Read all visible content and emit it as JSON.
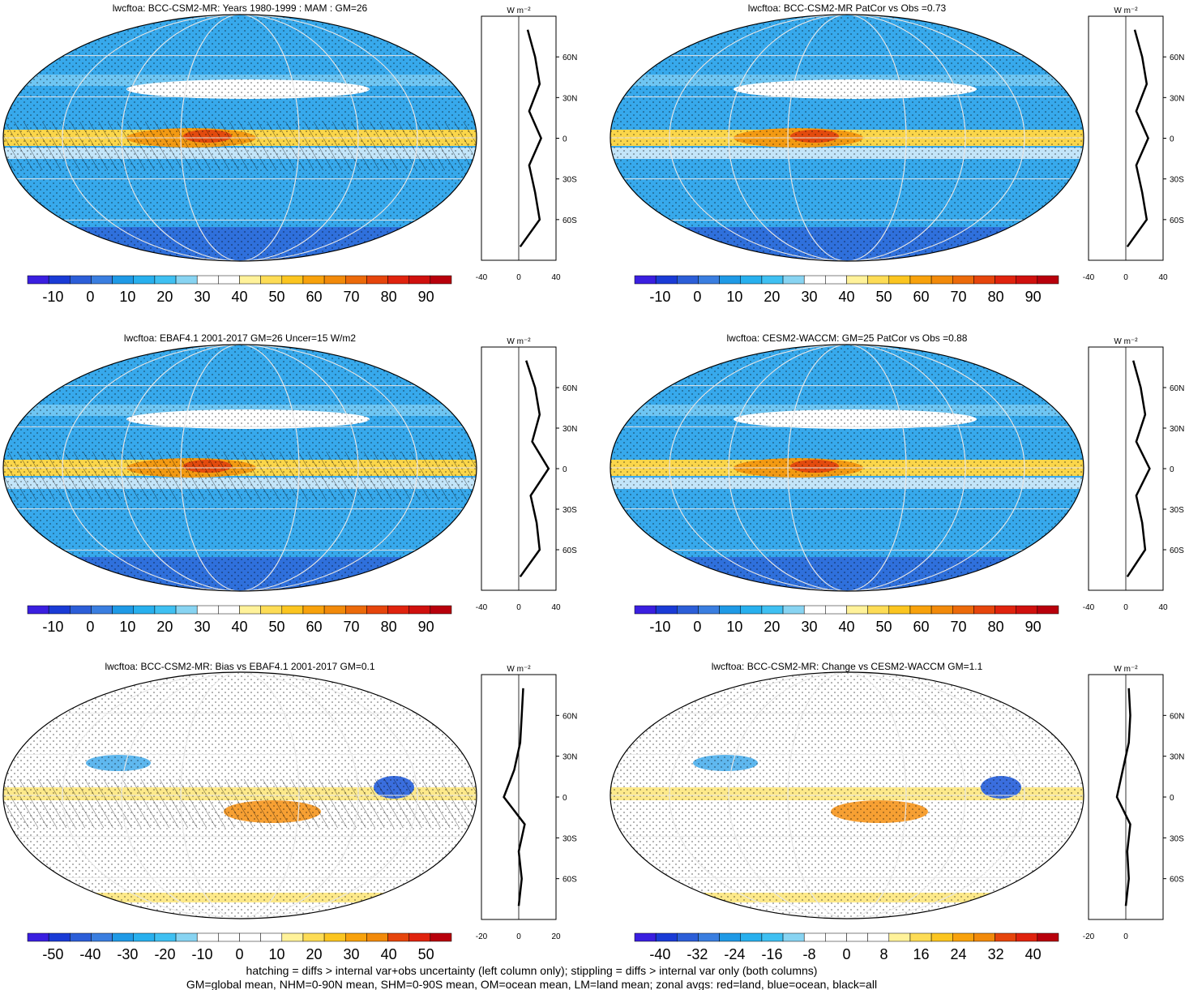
{
  "panels": [
    {
      "title": "lwcftoa: BCC-CSM2-MR: Years 1980-1999 : MAM : GM=26",
      "colorbar": [
        "-10",
        "0",
        "10",
        "20",
        "30",
        "40",
        "50",
        "60",
        "70",
        "80",
        "90"
      ],
      "zonal_ticks": [
        "-40",
        "0",
        "40"
      ],
      "lat_labels": [
        "60N",
        "30N",
        "0",
        "30S",
        "60S"
      ],
      "unit": "W m⁻²"
    },
    {
      "title": "lwcftoa: BCC-CSM2-MR PatCor vs Obs =0.73",
      "colorbar": [
        "-10",
        "0",
        "10",
        "20",
        "30",
        "40",
        "50",
        "60",
        "70",
        "80",
        "90"
      ],
      "zonal_ticks": [
        "-40",
        "0",
        "40"
      ],
      "lat_labels": [
        "60N",
        "30N",
        "0",
        "30S",
        "60S"
      ],
      "unit": "W m⁻²"
    },
    {
      "title": "lwcftoa: EBAF4.1 2001-2017 GM=26 Uncer=15 W/m2",
      "colorbar": [
        "-10",
        "0",
        "10",
        "20",
        "30",
        "40",
        "50",
        "60",
        "70",
        "80",
        "90"
      ],
      "zonal_ticks": [
        "-40",
        "0",
        "40"
      ],
      "lat_labels": [
        "60N",
        "30N",
        "0",
        "30S",
        "60S"
      ],
      "unit": "W m⁻²"
    },
    {
      "title": "lwcftoa: CESM2-WACCM: GM=25 PatCor vs Obs =0.88",
      "colorbar": [
        "-10",
        "0",
        "10",
        "20",
        "30",
        "40",
        "50",
        "60",
        "70",
        "80",
        "90"
      ],
      "zonal_ticks": [
        "-40",
        "0",
        "40"
      ],
      "lat_labels": [
        "60N",
        "30N",
        "0",
        "30S",
        "60S"
      ],
      "unit": "W m⁻²"
    },
    {
      "title": "lwcftoa: BCC-CSM2-MR: Bias vs EBAF4.1 2001-2017 GM=0.1",
      "colorbar": [
        "-50",
        "-40",
        "-30",
        "-20",
        "-10",
        "0",
        "10",
        "20",
        "30",
        "40",
        "50"
      ],
      "zonal_ticks": [
        "-20",
        "0",
        "20"
      ],
      "lat_labels": [
        "60N",
        "30N",
        "0",
        "30S",
        "60S"
      ],
      "unit": "W m⁻²"
    },
    {
      "title": "lwcftoa: BCC-CSM2-MR: Change vs CESM2-WACCM GM=1.1",
      "colorbar": [
        "-40",
        "-32",
        "-24",
        "-16",
        "-8",
        "0",
        "8",
        "16",
        "24",
        "32",
        "40"
      ],
      "zonal_ticks": [
        "-20",
        "0"
      ],
      "lat_labels": [
        "60N",
        "30N",
        "0",
        "30S",
        "60S"
      ],
      "unit": "W m⁻²"
    }
  ],
  "footer": {
    "line1": "hatching = diffs > internal var+obs uncertainty (left column only); stippling = diffs > internal var only (both columns)",
    "line2": "GM=global mean, NHM=0-90N mean, SHM=0-90S mean, OM=ocean mean, LM=land mean; zonal avgs: red=land, blue=ocean, black=all"
  },
  "colors": {
    "abs_scale": [
      "#3a1fe0",
      "#1a3bd6",
      "#2c5ed8",
      "#3a7ee0",
      "#1f9ae6",
      "#28b0ee",
      "#3fc0f2",
      "#88d4f2",
      "#ffffff",
      "#ffffff",
      "#fff29a",
      "#fddc55",
      "#fbc520",
      "#f8a20c",
      "#f28a0a",
      "#ec6a0a",
      "#e6450c",
      "#e0230e",
      "#d0100e",
      "#b8000c"
    ],
    "diff_scale": [
      "#3a1fe0",
      "#1a3bd6",
      "#2c5ed8",
      "#3a7ee0",
      "#1f9ae6",
      "#28b0ee",
      "#3fc0f2",
      "#88d4f2",
      "#ffffff",
      "#ffffff",
      "#ffffff",
      "#ffffff",
      "#fff29a",
      "#fddc55",
      "#fbc520",
      "#f8a20c",
      "#f28a0a",
      "#e6450c",
      "#e0230e",
      "#b8000c"
    ],
    "land": "#ff0000",
    "ocean": "#0000ff",
    "all": "#000000"
  },
  "chart_data": [
    {
      "type": "heatmap",
      "title": "lwcftoa: BCC-CSM2-MR: Years 1980-1999 : MAM : GM=26",
      "colorbar_range": [
        -10,
        90
      ],
      "zonal_mean": {
        "lat": [
          80,
          60,
          40,
          20,
          0,
          -20,
          -40,
          -60,
          -80
        ],
        "all": [
          12,
          22,
          28,
          14,
          30,
          14,
          22,
          28,
          2
        ]
      }
    },
    {
      "type": "heatmap",
      "title": "lwcftoa: BCC-CSM2-MR PatCor vs Obs =0.73",
      "colorbar_range": [
        -10,
        90
      ],
      "zonal_mean": {
        "lat": [
          80,
          60,
          40,
          20,
          0,
          -20,
          -40,
          -60,
          -80
        ],
        "all": [
          12,
          22,
          28,
          14,
          30,
          14,
          22,
          28,
          2
        ]
      }
    },
    {
      "type": "heatmap",
      "title": "lwcftoa: EBAF4.1 2001-2017 GM=26 Uncer=15 W/m2",
      "colorbar_range": [
        -10,
        90
      ],
      "zonal_mean": {
        "lat": [
          80,
          60,
          40,
          20,
          0,
          -20,
          -40,
          -60,
          -80
        ],
        "all": [
          10,
          22,
          28,
          18,
          40,
          16,
          24,
          28,
          2
        ]
      }
    },
    {
      "type": "heatmap",
      "title": "lwcftoa: CESM2-WACCM: GM=25 PatCor vs Obs =0.88",
      "colorbar_range": [
        -10,
        90
      ],
      "zonal_mean": {
        "lat": [
          80,
          60,
          40,
          20,
          0,
          -20,
          -40,
          -60,
          -80
        ],
        "all": [
          10,
          20,
          26,
          14,
          32,
          14,
          22,
          26,
          2
        ]
      }
    },
    {
      "type": "heatmap",
      "title": "lwcftoa: BCC-CSM2-MR: Bias vs EBAF4.1 2001-2017 GM=0.1",
      "colorbar_range": [
        -50,
        50
      ],
      "zonal_mean": {
        "lat": [
          80,
          60,
          40,
          20,
          0,
          -20,
          -40,
          -60,
          -80
        ],
        "all": [
          3,
          2,
          1,
          -3,
          -10,
          4,
          0,
          2,
          0
        ]
      }
    },
    {
      "type": "heatmap",
      "title": "lwcftoa: BCC-CSM2-MR: Change vs CESM2-WACCM GM=1.1",
      "colorbar_range": [
        -40,
        40
      ],
      "zonal_mean": {
        "lat": [
          80,
          60,
          40,
          20,
          0,
          -20,
          -40,
          -60,
          -80
        ],
        "all": [
          2,
          3,
          2,
          -2,
          -6,
          3,
          1,
          2,
          0
        ]
      }
    }
  ]
}
